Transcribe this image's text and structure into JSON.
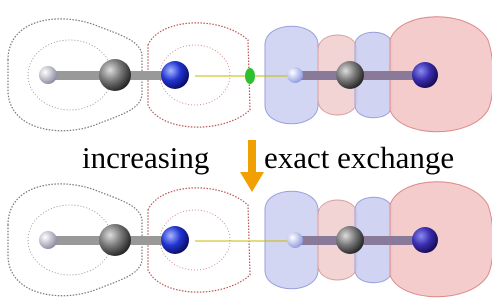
{
  "caption": {
    "left": "increasing",
    "right": "exact exchange"
  }
}
